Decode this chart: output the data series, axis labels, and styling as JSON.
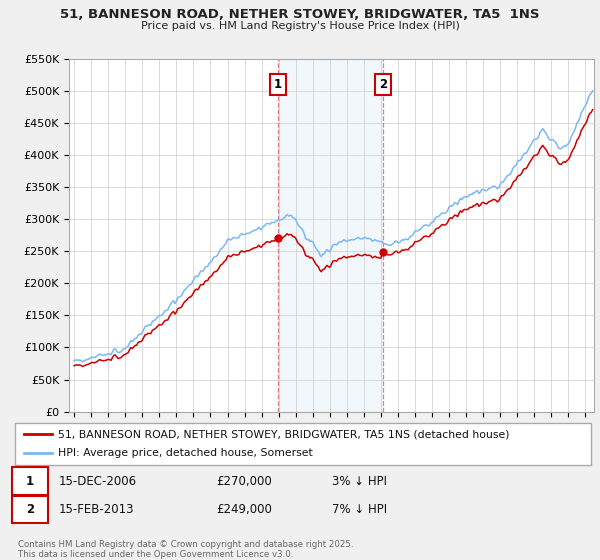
{
  "title": "51, BANNESON ROAD, NETHER STOWEY, BRIDGWATER, TA5  1NS",
  "subtitle": "Price paid vs. HM Land Registry's House Price Index (HPI)",
  "ylim": [
    0,
    550000
  ],
  "yticks": [
    0,
    50000,
    100000,
    150000,
    200000,
    250000,
    300000,
    350000,
    400000,
    450000,
    500000,
    550000
  ],
  "ytick_labels": [
    "£0",
    "£50K",
    "£100K",
    "£150K",
    "£200K",
    "£250K",
    "£300K",
    "£350K",
    "£400K",
    "£450K",
    "£500K",
    "£550K"
  ],
  "xlim_start": 1994.7,
  "xlim_end": 2025.5,
  "marker1_x": 2006.96,
  "marker1_y": 270000,
  "marker2_x": 2013.12,
  "marker2_y": 249000,
  "marker1_label": "1",
  "marker2_label": "2",
  "shade_x1_start": 2006.96,
  "shade_x1_end": 2013.12,
  "hpi_color": "#7ab8f5",
  "price_color": "#cc0000",
  "legend_house": "51, BANNESON ROAD, NETHER STOWEY, BRIDGWATER, TA5 1NS (detached house)",
  "legend_hpi": "HPI: Average price, detached house, Somerset",
  "table_row1": [
    "1",
    "15-DEC-2006",
    "£270,000",
    "3% ↓ HPI"
  ],
  "table_row2": [
    "2",
    "15-FEB-2013",
    "£249,000",
    "7% ↓ HPI"
  ],
  "footnote": "Contains HM Land Registry data © Crown copyright and database right 2025.\nThis data is licensed under the Open Government Licence v3.0.",
  "background_color": "#f0f0f0",
  "plot_bg_color": "#ffffff"
}
